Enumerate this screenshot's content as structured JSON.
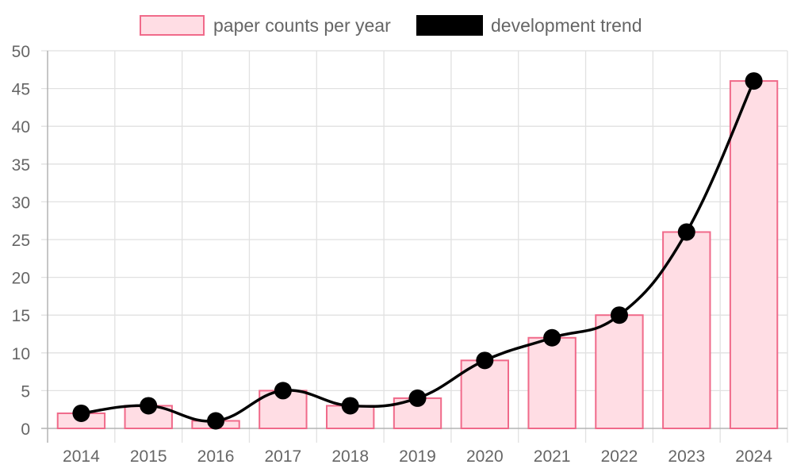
{
  "chart_data": {
    "type": "bar",
    "title": "",
    "xlabel": "",
    "ylabel": "",
    "categories": [
      "2014",
      "2015",
      "2016",
      "2017",
      "2018",
      "2019",
      "2020",
      "2021",
      "2022",
      "2023",
      "2024"
    ],
    "series": [
      {
        "name": "paper counts per year",
        "type": "bar",
        "values": [
          2,
          3,
          1,
          5,
          3,
          4,
          9,
          12,
          15,
          26,
          46
        ],
        "fill": "#ffdde4",
        "stroke": "#f06a8a"
      },
      {
        "name": "development trend",
        "type": "line",
        "smooth": true,
        "values": [
          2,
          3,
          1,
          5,
          3,
          4,
          9,
          12,
          15,
          26,
          46
        ],
        "color": "#000000"
      }
    ],
    "ylim": [
      0,
      50
    ],
    "yticks": [
      0,
      5,
      10,
      15,
      20,
      25,
      30,
      35,
      40,
      45,
      50
    ],
    "grid": true,
    "legend": "top-center"
  }
}
